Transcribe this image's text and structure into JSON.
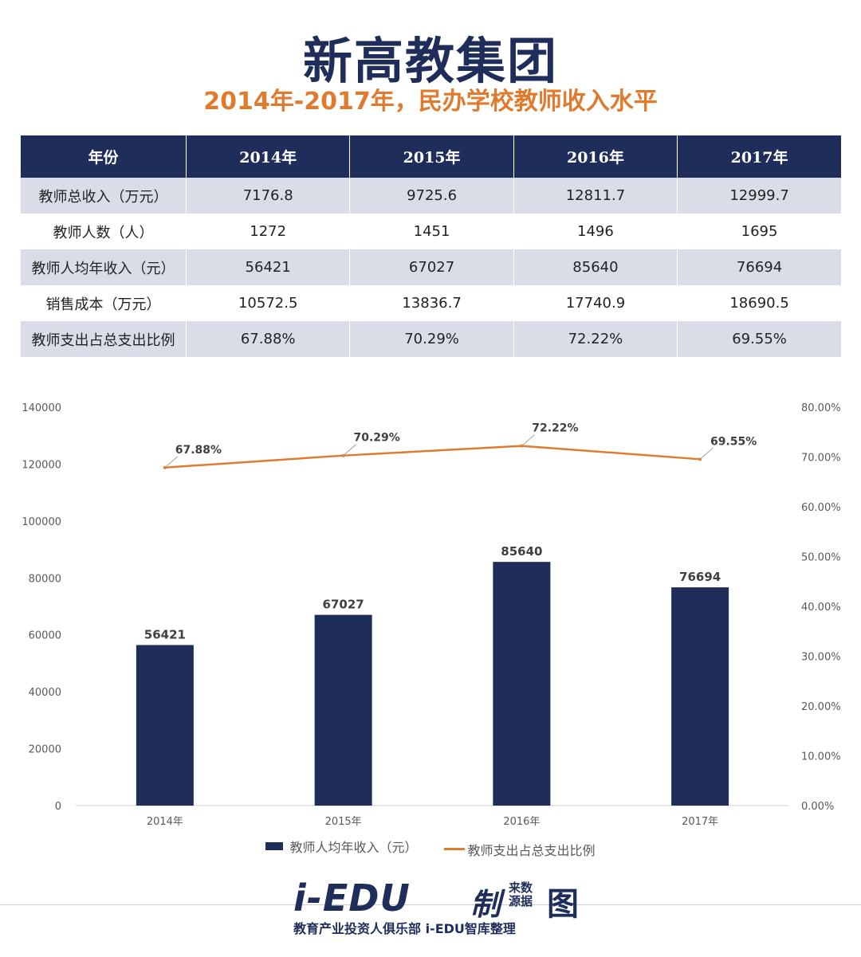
{
  "header": {
    "title": "新高教集团",
    "subtitle": "2014年-2017年，民办学校教师收入水平"
  },
  "table": {
    "headers": [
      "年份",
      "2014年",
      "2015年",
      "2016年",
      "2017年"
    ],
    "rows": [
      {
        "label": "教师总收入（万元）",
        "values": [
          "7176.8",
          "9725.6",
          "12811.7",
          "12999.7"
        ]
      },
      {
        "label": "教师人数（人）",
        "values": [
          "1272",
          "1451",
          "1496",
          "1695"
        ]
      },
      {
        "label": "教师人均年收入（元）",
        "values": [
          "56421",
          "67027",
          "85640",
          "76694"
        ]
      },
      {
        "label": "销售成本（万元）",
        "values": [
          "10572.5",
          "13836.7",
          "17740.9",
          "18690.5"
        ]
      },
      {
        "label": "教师支出占总支出比例",
        "values": [
          "67.88%",
          "70.29%",
          "72.22%",
          "69.55%"
        ]
      }
    ]
  },
  "chart_data": {
    "type": "bar",
    "categories": [
      "2014年",
      "2015年",
      "2016年",
      "2017年"
    ],
    "series": [
      {
        "name": "教师人均年收入（元）",
        "type": "bar",
        "axis": "left",
        "values": [
          56421,
          67027,
          85640,
          76694
        ],
        "labels": [
          "56421",
          "67027",
          "85640",
          "76694"
        ]
      },
      {
        "name": "教师支出占总支出比例",
        "type": "line",
        "axis": "right",
        "values": [
          67.88,
          70.29,
          72.22,
          69.55
        ],
        "labels": [
          "67.88%",
          "70.29%",
          "72.22%",
          "69.55%"
        ]
      }
    ],
    "y_left": {
      "min": 0,
      "max": 140000,
      "ticks": [
        "0",
        "20000",
        "40000",
        "60000",
        "80000",
        "100000",
        "120000",
        "140000"
      ]
    },
    "y_right": {
      "min": 0,
      "max": 80,
      "ticks": [
        "0.00%",
        "10.00%",
        "20.00%",
        "30.00%",
        "40.00%",
        "50.00%",
        "60.00%",
        "70.00%",
        "80.00%"
      ]
    },
    "grid": false,
    "legend_position": "bottom"
  },
  "colors": {
    "navy": "#1f2d5a",
    "orange": "#e07b2e"
  },
  "footer": {
    "brand": "i-EDU",
    "made": "制",
    "source": "来数源据",
    "tu": "图",
    "tagline": "教育产业投资人俱乐部  i-EDU智库整理"
  }
}
